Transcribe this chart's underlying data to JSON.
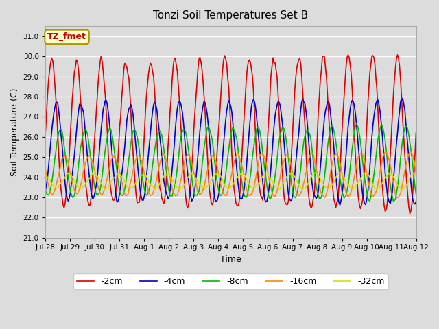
{
  "title": "Tonzi Soil Temperatures Set B",
  "xlabel": "Time",
  "ylabel": "Soil Temperature (C)",
  "ylim": [
    21.0,
    31.5
  ],
  "yticks": [
    21.0,
    22.0,
    23.0,
    24.0,
    25.0,
    26.0,
    27.0,
    28.0,
    29.0,
    30.0,
    31.0
  ],
  "annotation_text": "TZ_fmet",
  "annotation_color": "#cc0000",
  "annotation_bg": "#ffffcc",
  "annotation_border": "#aa9900",
  "background_color": "#dcdcdc",
  "plot_bg": "#dcdcdc",
  "grid_color": "white",
  "line_colors": {
    "-2cm": "#dd0000",
    "-4cm": "#0000cc",
    "-8cm": "#00bb00",
    "-16cm": "#ff8800",
    "-32cm": "#dddd00"
  },
  "line_width": 1.2,
  "legend_entries": [
    "-2cm",
    "-4cm",
    "-8cm",
    "-16cm",
    "-32cm"
  ],
  "x_tick_labels": [
    "Jul 28",
    "Jul 29",
    "Jul 30",
    "Jul 31",
    "Aug 1",
    "Aug 2",
    "Aug 3",
    "Aug 4",
    "Aug 5",
    "Aug 6",
    "Aug 7",
    "Aug 8",
    "Aug 9",
    "Aug 10",
    "Aug 11",
    "Aug 12"
  ],
  "days": 15,
  "params": {
    "-2cm": {
      "base": 26.2,
      "amp": 3.5,
      "phase": 0.0,
      "amp_growth": 0.4,
      "noise": 0.3
    },
    "-4cm": {
      "base": 25.3,
      "amp": 2.3,
      "phase": 0.18,
      "amp_growth": 0.3,
      "noise": 0.15
    },
    "-8cm": {
      "base": 24.7,
      "amp": 1.6,
      "phase": 0.35,
      "amp_growth": 0.25,
      "noise": 0.1
    },
    "-16cm": {
      "base": 24.1,
      "amp": 0.95,
      "phase": 0.52,
      "amp_growth": 0.15,
      "noise": 0.08
    },
    "-32cm": {
      "base": 23.8,
      "amp": 0.35,
      "phase": 0.68,
      "amp_growth": 0.05,
      "noise": 0.05
    }
  }
}
